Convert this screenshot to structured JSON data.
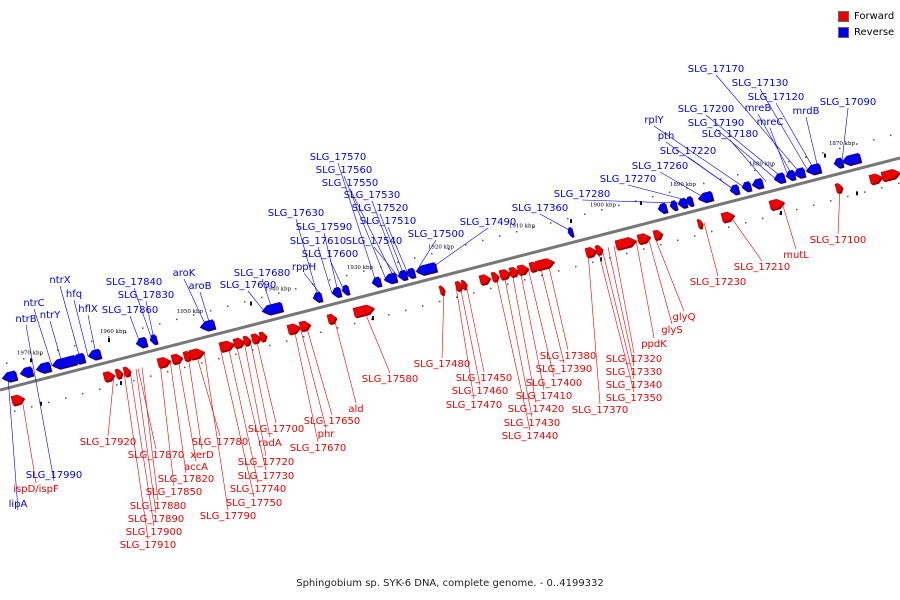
{
  "legend": {
    "forward": {
      "label": "Forward",
      "color": "#ee0000"
    },
    "reverse": {
      "label": "Reverse",
      "color": "#0000ee"
    }
  },
  "caption": "Sphingobium sp. SYK-6 DNA, complete genome. - 0..4199332",
  "ticks": [
    "1870 kbp",
    "1880 kbp",
    "1890 kbp",
    "1900 kbp",
    "1910 kbp",
    "1920 kbp",
    "1930 kbp",
    "1940 kbp",
    "1950 kbp",
    "1960 kbp",
    "1970 kbp"
  ],
  "reverse_labels": [
    "SLG_17170",
    "SLG_17130",
    "SLG_17120",
    "mreB",
    "mreC",
    "mrdB",
    "SLG_17090",
    "SLG_17200",
    "SLG_17190",
    "SLG_17180",
    "rplY",
    "pth",
    "SLG_17220",
    "SLG_17260",
    "SLG_17270",
    "SLG_17280",
    "SLG_17360",
    "SLG_17570",
    "SLG_17560",
    "SLG_17550",
    "SLG_17530",
    "SLG_17520",
    "SLG_17510",
    "SLG_17540",
    "SLG_17500",
    "SLG_17490",
    "SLG_17630",
    "SLG_17590",
    "SLG_17610",
    "SLG_17600",
    "rppH",
    "SLG_17680",
    "SLG_17690",
    "aroK",
    "aroB",
    "SLG_17840",
    "SLG_17830",
    "SLG_17860",
    "ntrX",
    "hfq",
    "ntrC",
    "ntrY",
    "hflX",
    "ntrB",
    "SLG_17990",
    "lipA"
  ],
  "forward_labels": [
    "SLG_17100",
    "mutL",
    "SLG_17210",
    "SLG_17230",
    "glyQ",
    "glyS",
    "ppdK",
    "SLG_17320",
    "SLG_17330",
    "SLG_17340",
    "SLG_17350",
    "SLG_17380",
    "SLG_17390",
    "SLG_17400",
    "SLG_17410",
    "SLG_17370",
    "SLG_17420",
    "SLG_17430",
    "SLG_17440",
    "SLG_17480",
    "SLG_17450",
    "SLG_17460",
    "SLG_17470",
    "SLG_17580",
    "ald",
    "SLG_17650",
    "phr",
    "SLG_17670",
    "SLG_17700",
    "radA",
    "SLG_17780",
    "xerD",
    "SLG_17720",
    "SLG_17730",
    "accA",
    "SLG_17740",
    "SLG_17750",
    "SLG_17820",
    "SLG_17790",
    "SLG_17920",
    "SLG_17870",
    "SLG_17850",
    "SLG_17880",
    "SLG_17890",
    "SLG_17900",
    "SLG_17910",
    "ispD/ispF"
  ]
}
